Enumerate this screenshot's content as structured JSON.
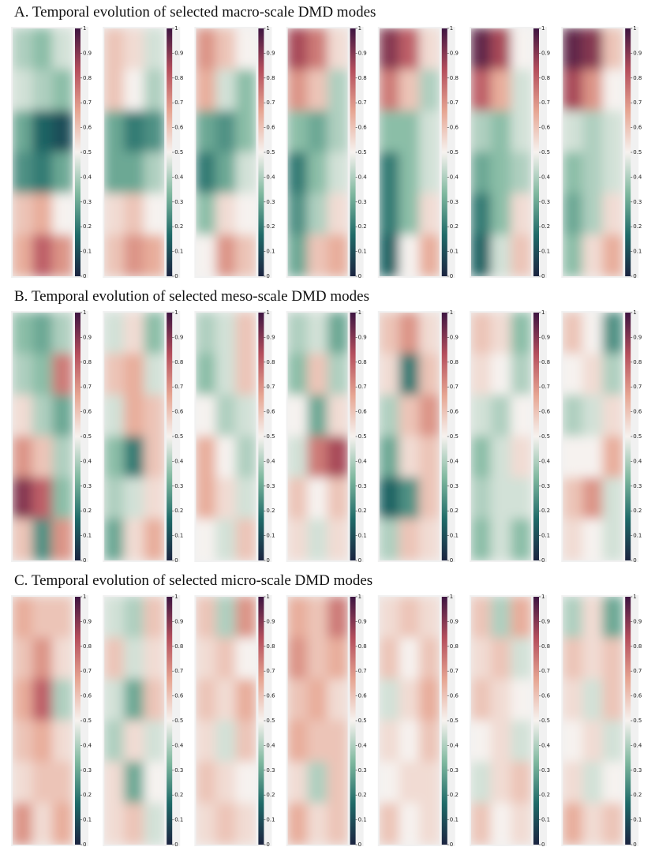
{
  "chart_data": [
    {
      "type": "heatmap",
      "title": "A. Temporal evolution of selected macro-scale DMD modes",
      "colormap": [
        "#1b2440",
        "#1f6a68",
        "#7fb89f",
        "#f6f2ef",
        "#e6a592",
        "#b44e5c",
        "#3e1541"
      ],
      "colorbar_ticks": [
        0,
        0.1,
        0.2,
        0.3,
        0.4,
        0.5,
        0.6,
        0.7,
        0.8,
        0.9,
        1
      ],
      "panels": [
        [
          [
            0.4,
            0.35,
            0.45
          ],
          [
            0.45,
            0.4,
            0.35
          ],
          [
            0.3,
            0.15,
            0.1
          ],
          [
            0.25,
            0.2,
            0.3
          ],
          [
            0.6,
            0.65,
            0.5
          ],
          [
            0.65,
            0.8,
            0.7
          ]
        ],
        [
          [
            0.6,
            0.55,
            0.45
          ],
          [
            0.6,
            0.5,
            0.4
          ],
          [
            0.3,
            0.2,
            0.25
          ],
          [
            0.3,
            0.3,
            0.4
          ],
          [
            0.55,
            0.6,
            0.5
          ],
          [
            0.6,
            0.7,
            0.65
          ]
        ],
        [
          [
            0.7,
            0.6,
            0.5
          ],
          [
            0.65,
            0.45,
            0.35
          ],
          [
            0.3,
            0.25,
            0.35
          ],
          [
            0.2,
            0.3,
            0.45
          ],
          [
            0.35,
            0.55,
            0.5
          ],
          [
            0.5,
            0.7,
            0.6
          ]
        ],
        [
          [
            0.85,
            0.75,
            0.55
          ],
          [
            0.7,
            0.6,
            0.4
          ],
          [
            0.35,
            0.3,
            0.4
          ],
          [
            0.2,
            0.35,
            0.45
          ],
          [
            0.25,
            0.4,
            0.55
          ],
          [
            0.3,
            0.6,
            0.65
          ]
        ],
        [
          [
            0.9,
            0.8,
            0.55
          ],
          [
            0.75,
            0.6,
            0.4
          ],
          [
            0.35,
            0.35,
            0.45
          ],
          [
            0.2,
            0.35,
            0.45
          ],
          [
            0.2,
            0.35,
            0.55
          ],
          [
            0.15,
            0.5,
            0.65
          ]
        ],
        [
          [
            0.95,
            0.85,
            0.5
          ],
          [
            0.8,
            0.65,
            0.45
          ],
          [
            0.4,
            0.35,
            0.45
          ],
          [
            0.3,
            0.35,
            0.4
          ],
          [
            0.2,
            0.35,
            0.55
          ],
          [
            0.15,
            0.45,
            0.6
          ]
        ],
        [
          [
            0.95,
            0.9,
            0.6
          ],
          [
            0.85,
            0.7,
            0.5
          ],
          [
            0.45,
            0.4,
            0.45
          ],
          [
            0.35,
            0.4,
            0.45
          ],
          [
            0.3,
            0.4,
            0.55
          ],
          [
            0.35,
            0.55,
            0.65
          ]
        ]
      ]
    },
    {
      "type": "heatmap",
      "title": "B. Temporal evolution of selected meso-scale DMD modes",
      "colormap": [
        "#1b2440",
        "#1f6a68",
        "#7fb89f",
        "#f6f2ef",
        "#e6a592",
        "#b44e5c",
        "#3e1541"
      ],
      "colorbar_ticks": [
        0,
        0.1,
        0.2,
        0.3,
        0.4,
        0.5,
        0.6,
        0.7,
        0.8,
        0.9,
        1
      ],
      "panels": [
        [
          [
            0.35,
            0.3,
            0.4
          ],
          [
            0.4,
            0.35,
            0.75
          ],
          [
            0.55,
            0.4,
            0.3
          ],
          [
            0.7,
            0.6,
            0.4
          ],
          [
            0.9,
            0.8,
            0.35
          ],
          [
            0.6,
            0.25,
            0.7
          ]
        ],
        [
          [
            0.45,
            0.55,
            0.35
          ],
          [
            0.6,
            0.65,
            0.45
          ],
          [
            0.45,
            0.65,
            0.6
          ],
          [
            0.35,
            0.2,
            0.6
          ],
          [
            0.4,
            0.45,
            0.55
          ],
          [
            0.3,
            0.55,
            0.65
          ]
        ],
        [
          [
            0.4,
            0.45,
            0.6
          ],
          [
            0.35,
            0.45,
            0.6
          ],
          [
            0.5,
            0.4,
            0.45
          ],
          [
            0.65,
            0.5,
            0.4
          ],
          [
            0.65,
            0.55,
            0.45
          ],
          [
            0.5,
            0.45,
            0.6
          ]
        ],
        [
          [
            0.4,
            0.45,
            0.3
          ],
          [
            0.35,
            0.6,
            0.4
          ],
          [
            0.5,
            0.3,
            0.55
          ],
          [
            0.45,
            0.75,
            0.85
          ],
          [
            0.6,
            0.5,
            0.6
          ],
          [
            0.55,
            0.45,
            0.55
          ]
        ],
        [
          [
            0.6,
            0.7,
            0.55
          ],
          [
            0.55,
            0.2,
            0.6
          ],
          [
            0.4,
            0.6,
            0.7
          ],
          [
            0.3,
            0.55,
            0.6
          ],
          [
            0.15,
            0.25,
            0.6
          ],
          [
            0.4,
            0.6,
            0.55
          ]
        ],
        [
          [
            0.6,
            0.55,
            0.35
          ],
          [
            0.55,
            0.5,
            0.4
          ],
          [
            0.45,
            0.4,
            0.5
          ],
          [
            0.35,
            0.45,
            0.55
          ],
          [
            0.4,
            0.45,
            0.45
          ],
          [
            0.35,
            0.45,
            0.35
          ]
        ],
        [
          [
            0.6,
            0.5,
            0.25
          ],
          [
            0.5,
            0.55,
            0.4
          ],
          [
            0.4,
            0.45,
            0.55
          ],
          [
            0.5,
            0.5,
            0.65
          ],
          [
            0.6,
            0.7,
            0.45
          ],
          [
            0.55,
            0.5,
            0.45
          ]
        ]
      ]
    },
    {
      "type": "heatmap",
      "title": "C. Temporal evolution of selected micro-scale DMD modes",
      "colormap": [
        "#1b2440",
        "#1f6a68",
        "#7fb89f",
        "#f6f2ef",
        "#e6a592",
        "#b44e5c",
        "#3e1541"
      ],
      "colorbar_ticks": [
        0,
        0.1,
        0.2,
        0.3,
        0.4,
        0.5,
        0.6,
        0.7,
        0.8,
        0.9,
        1
      ],
      "panels": [
        [
          [
            0.65,
            0.6,
            0.6
          ],
          [
            0.6,
            0.7,
            0.55
          ],
          [
            0.65,
            0.8,
            0.4
          ],
          [
            0.6,
            0.65,
            0.55
          ],
          [
            0.55,
            0.6,
            0.6
          ],
          [
            0.7,
            0.55,
            0.65
          ]
        ],
        [
          [
            0.45,
            0.4,
            0.6
          ],
          [
            0.6,
            0.45,
            0.55
          ],
          [
            0.45,
            0.3,
            0.6
          ],
          [
            0.4,
            0.55,
            0.45
          ],
          [
            0.55,
            0.3,
            0.5
          ],
          [
            0.55,
            0.6,
            0.45
          ]
        ],
        [
          [
            0.6,
            0.4,
            0.7
          ],
          [
            0.55,
            0.6,
            0.5
          ],
          [
            0.6,
            0.55,
            0.65
          ],
          [
            0.55,
            0.45,
            0.6
          ],
          [
            0.6,
            0.55,
            0.5
          ],
          [
            0.55,
            0.6,
            0.55
          ]
        ],
        [
          [
            0.65,
            0.6,
            0.75
          ],
          [
            0.7,
            0.6,
            0.65
          ],
          [
            0.6,
            0.65,
            0.55
          ],
          [
            0.65,
            0.6,
            0.6
          ],
          [
            0.55,
            0.4,
            0.6
          ],
          [
            0.65,
            0.55,
            0.6
          ]
        ],
        [
          [
            0.55,
            0.6,
            0.55
          ],
          [
            0.6,
            0.5,
            0.6
          ],
          [
            0.45,
            0.55,
            0.65
          ],
          [
            0.55,
            0.5,
            0.6
          ],
          [
            0.5,
            0.55,
            0.55
          ],
          [
            0.6,
            0.5,
            0.55
          ]
        ],
        [
          [
            0.6,
            0.4,
            0.65
          ],
          [
            0.55,
            0.6,
            0.45
          ],
          [
            0.6,
            0.55,
            0.5
          ],
          [
            0.5,
            0.55,
            0.45
          ],
          [
            0.45,
            0.55,
            0.6
          ],
          [
            0.6,
            0.5,
            0.55
          ]
        ],
        [
          [
            0.4,
            0.55,
            0.3
          ],
          [
            0.6,
            0.55,
            0.6
          ],
          [
            0.55,
            0.45,
            0.6
          ],
          [
            0.5,
            0.55,
            0.45
          ],
          [
            0.55,
            0.45,
            0.5
          ],
          [
            0.65,
            0.55,
            0.6
          ]
        ]
      ]
    }
  ]
}
